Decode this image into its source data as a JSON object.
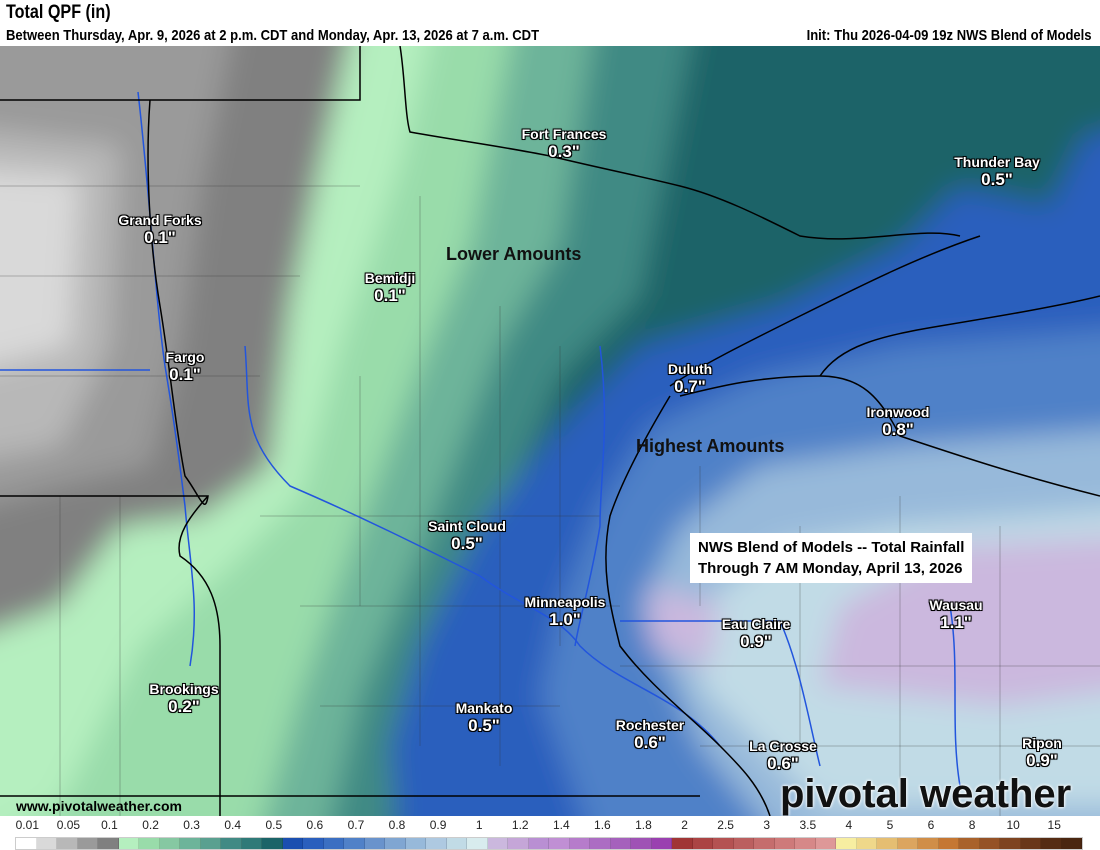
{
  "header": {
    "title": "Total QPF (in)",
    "subtitle": "Between Thursday, Apr. 9, 2026 at 2 p.m. CDT and Monday, Apr. 13, 2026 at 7 a.m. CDT",
    "init": "Init: Thu 2026-04-09 19z NWS Blend of Models"
  },
  "map": {
    "regions": {
      "lower": "Lower Amounts",
      "highest": "Highest Amounts"
    },
    "note": {
      "line1": "NWS Blend of Models -- Total Rainfall",
      "line2": "Through 7 AM Monday, April 13, 2026"
    },
    "cities": [
      {
        "name": "Fort Frances",
        "value": "0.3\""
      },
      {
        "name": "Thunder Bay",
        "value": "0.5\""
      },
      {
        "name": "Grand Forks",
        "value": "0.1\""
      },
      {
        "name": "Bemidji",
        "value": "0.1\""
      },
      {
        "name": "Fargo",
        "value": "0.1\""
      },
      {
        "name": "Duluth",
        "value": "0.7\""
      },
      {
        "name": "Ironwood",
        "value": "0.8\""
      },
      {
        "name": "Saint Cloud",
        "value": "0.5\""
      },
      {
        "name": "Minneapolis",
        "value": "1.0\""
      },
      {
        "name": "Eau Claire",
        "value": "0.9\""
      },
      {
        "name": "Wausau",
        "value": "1.1\""
      },
      {
        "name": "Brookings",
        "value": "0.2\""
      },
      {
        "name": "Mankato",
        "value": "0.5\""
      },
      {
        "name": "Rochester",
        "value": "0.6\""
      },
      {
        "name": "La Crosse",
        "value": "0.6\""
      },
      {
        "name": "Ripon",
        "value": "0.9\""
      }
    ],
    "website": "www.pivotalweather.com",
    "logo": "pivotal weather"
  },
  "legend": {
    "labels": [
      "0.01",
      "0.05",
      "0.1",
      "0.2",
      "0.3",
      "0.4",
      "0.5",
      "0.6",
      "0.7",
      "0.8",
      "0.9",
      "1",
      "1.2",
      "1.4",
      "1.6",
      "1.8",
      "2",
      "2.5",
      "3",
      "3.5",
      "4",
      "5",
      "6",
      "8",
      "10",
      "15"
    ],
    "colors": [
      "#ffffff",
      "#d9d9d9",
      "#b8b8b8",
      "#9a9a9a",
      "#808080",
      "#b5efbf",
      "#99dcaa",
      "#86c8a2",
      "#6db49a",
      "#5aa090",
      "#418a84",
      "#2f7a78",
      "#1b6468",
      "#1a4fb0",
      "#2a5fbd",
      "#3b6fc2",
      "#5081c8",
      "#6993cc",
      "#80a6d2",
      "#97b9da",
      "#aec9e1",
      "#c1dbe6",
      "#d8ecee",
      "#cbb8de",
      "#c5a6d8",
      "#b98fd3",
      "#c08fd4",
      "#b67ccb",
      "#ac6dc3",
      "#a561bc",
      "#9f52b5",
      "#9a40b0",
      "#a03535",
      "#ab4444",
      "#b45252",
      "#bb5f5f",
      "#c56d6d",
      "#ce7a7a",
      "#d68888",
      "#de9898",
      "#f7eea1",
      "#efd88a",
      "#e5be72",
      "#dca55f",
      "#d08e48",
      "#c57733",
      "#a9622b",
      "#955226",
      "#7e4420",
      "#693719",
      "#552c13",
      "#4a2610"
    ]
  }
}
